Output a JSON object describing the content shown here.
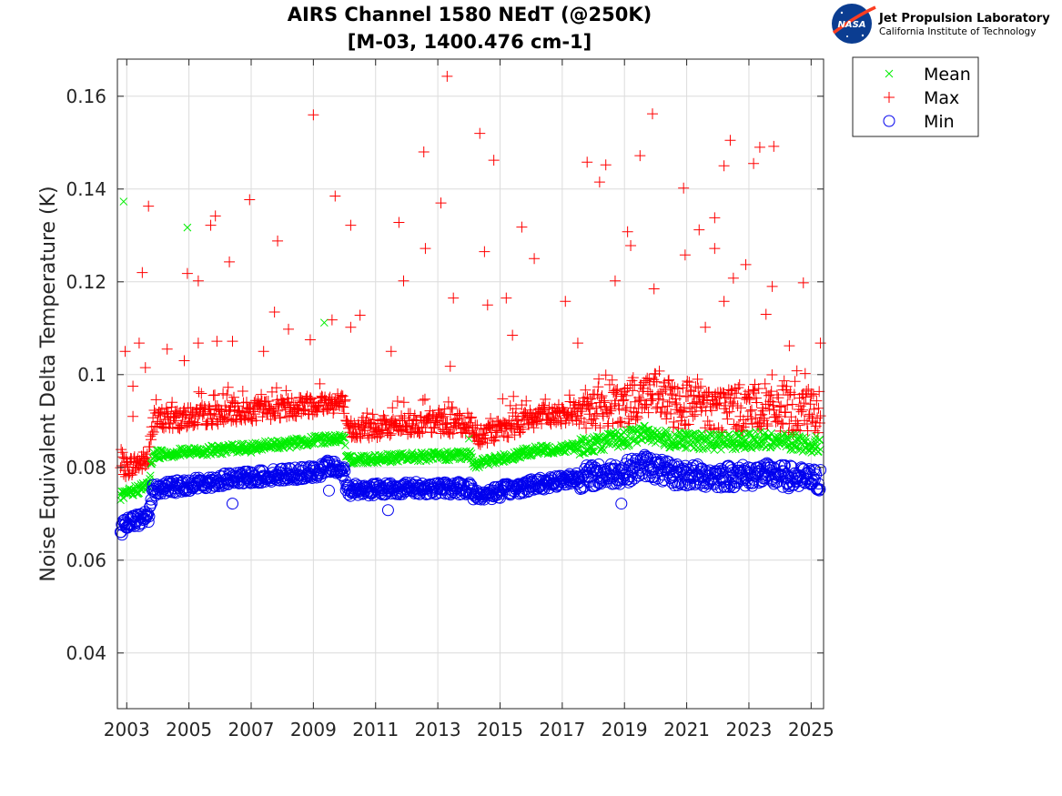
{
  "logo": {
    "emblem_text": "NASA",
    "org": "Jet Propulsion Laboratory",
    "institution": "California Institute of Technology"
  },
  "chart_data": {
    "type": "scatter",
    "title": [
      "AIRS Channel 1580 NEdT (@250K)",
      "[M-03, 1400.476 cm-1]"
    ],
    "xlabel": "",
    "ylabel": "Noise Equivalent Delta Temperature (K)",
    "xlim": [
      2002.7,
      2025.4
    ],
    "ylim": [
      0.028,
      0.168
    ],
    "xticks": [
      2003,
      2005,
      2007,
      2009,
      2011,
      2013,
      2015,
      2017,
      2019,
      2021,
      2023,
      2025
    ],
    "xtick_labels": [
      "2003",
      "2005",
      "2007",
      "2009",
      "2011",
      "2013",
      "2015",
      "2017",
      "2019",
      "2021",
      "2023",
      "2025"
    ],
    "yticks": [
      0.04,
      0.06,
      0.08,
      0.1,
      0.12,
      0.14,
      0.16
    ],
    "ytick_labels": [
      "0.04",
      "0.06",
      "0.08",
      "0.1",
      "0.12",
      "0.14",
      "0.16"
    ],
    "grid": true,
    "legend_position": "outside-top-right",
    "colors": {
      "mean": "#00ee00",
      "max": "#ff0000",
      "min": "#0000ee"
    },
    "series": [
      {
        "name": "Mean",
        "marker": "x",
        "baseline": [
          [
            2002.8,
            0.0737
          ],
          [
            2003.7,
            0.0762
          ],
          [
            2003.85,
            0.0828
          ],
          [
            2006.0,
            0.0838
          ],
          [
            2008.0,
            0.085
          ],
          [
            2009.5,
            0.0862
          ],
          [
            2010.0,
            0.0862
          ],
          [
            2010.05,
            0.0817
          ],
          [
            2012.0,
            0.0822
          ],
          [
            2014.1,
            0.0826
          ],
          [
            2014.15,
            0.0808
          ],
          [
            2015.0,
            0.0818
          ],
          [
            2016.0,
            0.0835
          ],
          [
            2017.5,
            0.0845
          ],
          [
            2019.0,
            0.0862
          ],
          [
            2019.7,
            0.0875
          ],
          [
            2020.5,
            0.0858
          ],
          [
            2022.0,
            0.0855
          ],
          [
            2023.5,
            0.086
          ],
          [
            2025.3,
            0.0848
          ]
        ],
        "outliers": [
          [
            2002.9,
            0.1373
          ],
          [
            2004.95,
            0.1317
          ],
          [
            2009.35,
            0.1112
          ],
          [
            2014.0,
            0.0862
          ],
          [
            2007.0,
            0.0832
          ]
        ]
      },
      {
        "name": "Max",
        "marker": "+",
        "baseline": [
          [
            2002.8,
            0.0795
          ],
          [
            2003.7,
            0.0818
          ],
          [
            2003.85,
            0.0898
          ],
          [
            2006.0,
            0.0915
          ],
          [
            2008.0,
            0.0928
          ],
          [
            2009.5,
            0.094
          ],
          [
            2010.0,
            0.0935
          ],
          [
            2010.05,
            0.088
          ],
          [
            2012.0,
            0.0892
          ],
          [
            2014.1,
            0.0895
          ],
          [
            2014.15,
            0.0868
          ],
          [
            2015.0,
            0.088
          ],
          [
            2016.0,
            0.0905
          ],
          [
            2017.5,
            0.092
          ],
          [
            2019.0,
            0.093
          ],
          [
            2019.7,
            0.096
          ],
          [
            2020.5,
            0.0935
          ],
          [
            2022.0,
            0.0925
          ],
          [
            2023.5,
            0.093
          ],
          [
            2025.3,
            0.0915
          ]
        ],
        "outliers": [
          [
            2002.95,
            0.105
          ],
          [
            2003.2,
            0.0975
          ],
          [
            2003.4,
            0.1068
          ],
          [
            2003.5,
            0.122
          ],
          [
            2003.7,
            0.1363
          ],
          [
            2003.2,
            0.091
          ],
          [
            2003.6,
            0.1015
          ],
          [
            2004.3,
            0.1055
          ],
          [
            2004.85,
            0.103
          ],
          [
            2004.95,
            0.1218
          ],
          [
            2005.3,
            0.1202
          ],
          [
            2005.3,
            0.1068
          ],
          [
            2005.7,
            0.1322
          ],
          [
            2005.85,
            0.1342
          ],
          [
            2005.9,
            0.1072
          ],
          [
            2006.3,
            0.1243
          ],
          [
            2006.4,
            0.1072
          ],
          [
            2006.95,
            0.1377
          ],
          [
            2007.4,
            0.105
          ],
          [
            2007.75,
            0.1135
          ],
          [
            2007.85,
            0.1288
          ],
          [
            2008.2,
            0.1098
          ],
          [
            2008.9,
            0.1075
          ],
          [
            2009.0,
            0.156
          ],
          [
            2009.6,
            0.1118
          ],
          [
            2009.7,
            0.1385
          ],
          [
            2010.2,
            0.1322
          ],
          [
            2010.2,
            0.1102
          ],
          [
            2010.5,
            0.1128
          ],
          [
            2011.5,
            0.105
          ],
          [
            2011.75,
            0.1328
          ],
          [
            2011.9,
            0.1202
          ],
          [
            2012.55,
            0.148
          ],
          [
            2012.6,
            0.1272
          ],
          [
            2013.1,
            0.137
          ],
          [
            2013.3,
            0.1643
          ],
          [
            2013.4,
            0.1018
          ],
          [
            2013.5,
            0.1165
          ],
          [
            2014.35,
            0.152
          ],
          [
            2014.5,
            0.1265
          ],
          [
            2014.6,
            0.115
          ],
          [
            2014.8,
            0.1462
          ],
          [
            2015.2,
            0.1165
          ],
          [
            2015.4,
            0.1085
          ],
          [
            2015.7,
            0.1318
          ],
          [
            2016.1,
            0.125
          ],
          [
            2017.1,
            0.1158
          ],
          [
            2017.5,
            0.1068
          ],
          [
            2017.8,
            0.1458
          ],
          [
            2018.2,
            0.1415
          ],
          [
            2018.4,
            0.1452
          ],
          [
            2018.7,
            0.1202
          ],
          [
            2019.1,
            0.1308
          ],
          [
            2019.2,
            0.1278
          ],
          [
            2019.5,
            0.1472
          ],
          [
            2019.9,
            0.1562
          ],
          [
            2019.95,
            0.1185
          ],
          [
            2020.9,
            0.1402
          ],
          [
            2020.95,
            0.1258
          ],
          [
            2021.4,
            0.1312
          ],
          [
            2021.6,
            0.1102
          ],
          [
            2021.9,
            0.1338
          ],
          [
            2021.9,
            0.1272
          ],
          [
            2022.2,
            0.145
          ],
          [
            2022.4,
            0.1505
          ],
          [
            2022.5,
            0.1208
          ],
          [
            2022.2,
            0.1158
          ],
          [
            2022.9,
            0.1237
          ],
          [
            2023.15,
            0.1455
          ],
          [
            2023.35,
            0.149
          ],
          [
            2023.55,
            0.113
          ],
          [
            2023.75,
            0.119
          ],
          [
            2023.8,
            0.1492
          ],
          [
            2024.3,
            0.1062
          ],
          [
            2024.75,
            0.1198
          ],
          [
            2025.3,
            0.1068
          ]
        ]
      },
      {
        "name": "Min",
        "marker": "o",
        "baseline": [
          [
            2002.8,
            0.0672
          ],
          [
            2003.7,
            0.0695
          ],
          [
            2003.85,
            0.0752
          ],
          [
            2006.0,
            0.0772
          ],
          [
            2008.0,
            0.0785
          ],
          [
            2009.2,
            0.079
          ],
          [
            2009.5,
            0.0805
          ],
          [
            2010.0,
            0.0788
          ],
          [
            2010.05,
            0.0752
          ],
          [
            2012.0,
            0.0755
          ],
          [
            2014.1,
            0.0755
          ],
          [
            2014.15,
            0.0738
          ],
          [
            2015.0,
            0.0748
          ],
          [
            2016.0,
            0.0762
          ],
          [
            2017.5,
            0.0778
          ],
          [
            2019.0,
            0.079
          ],
          [
            2019.7,
            0.0805
          ],
          [
            2020.5,
            0.0785
          ],
          [
            2022.0,
            0.078
          ],
          [
            2023.5,
            0.0785
          ],
          [
            2025.3,
            0.0772
          ]
        ],
        "outliers": [
          [
            2002.85,
            0.0655
          ],
          [
            2011.4,
            0.0708
          ],
          [
            2018.9,
            0.0722
          ],
          [
            2009.5,
            0.075
          ],
          [
            2006.4,
            0.0722
          ]
        ]
      }
    ]
  }
}
